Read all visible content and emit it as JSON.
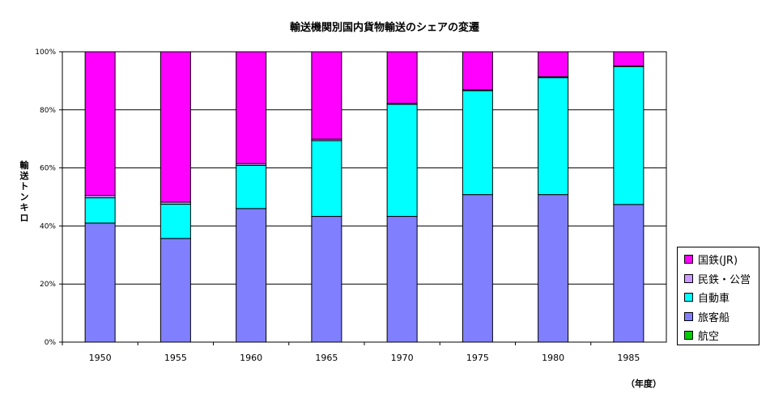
{
  "chart_data": {
    "type": "bar",
    "stacked": true,
    "percent": true,
    "title": "輸送機関別国内貨物輸送のシェアの変遷",
    "ylabel": "輸送トンキロ",
    "xlabel": "（年度）",
    "ylim": [
      0,
      100
    ],
    "yticks": [
      "0%",
      "20%",
      "40%",
      "60%",
      "80%",
      "100%"
    ],
    "categories": [
      "1950",
      "1955",
      "1960",
      "1965",
      "1970",
      "1975",
      "1980",
      "1985"
    ],
    "grid": true,
    "legend_position": "right-bottom",
    "series": [
      {
        "name": "航空",
        "color": "#00CC00",
        "values": [
          0,
          0,
          0,
          0,
          0,
          0,
          0,
          0
        ]
      },
      {
        "name": "旅客船",
        "color": "#8080FF",
        "values": [
          41,
          35.7,
          46,
          43.3,
          43.3,
          50.8,
          50.8,
          47.4
        ]
      },
      {
        "name": "自動車",
        "color": "#00FFFF",
        "values": [
          8.7,
          11.8,
          14.9,
          26.1,
          38.6,
          35.8,
          40.3,
          47.5
        ]
      },
      {
        "name": "民鉄・公営",
        "color": "#CC99FF",
        "values": [
          0.8,
          0.7,
          0.6,
          0.5,
          0.3,
          0.3,
          0.3,
          0.2
        ]
      },
      {
        "name": "国鉄(JR)",
        "color": "#FF00FF",
        "values": [
          49.5,
          51.8,
          38.5,
          30.1,
          17.8,
          13.1,
          8.6,
          4.9
        ]
      }
    ]
  },
  "legend_order": [
    "国鉄(JR)",
    "民鉄・公営",
    "自動車",
    "旅客船",
    "航空"
  ]
}
